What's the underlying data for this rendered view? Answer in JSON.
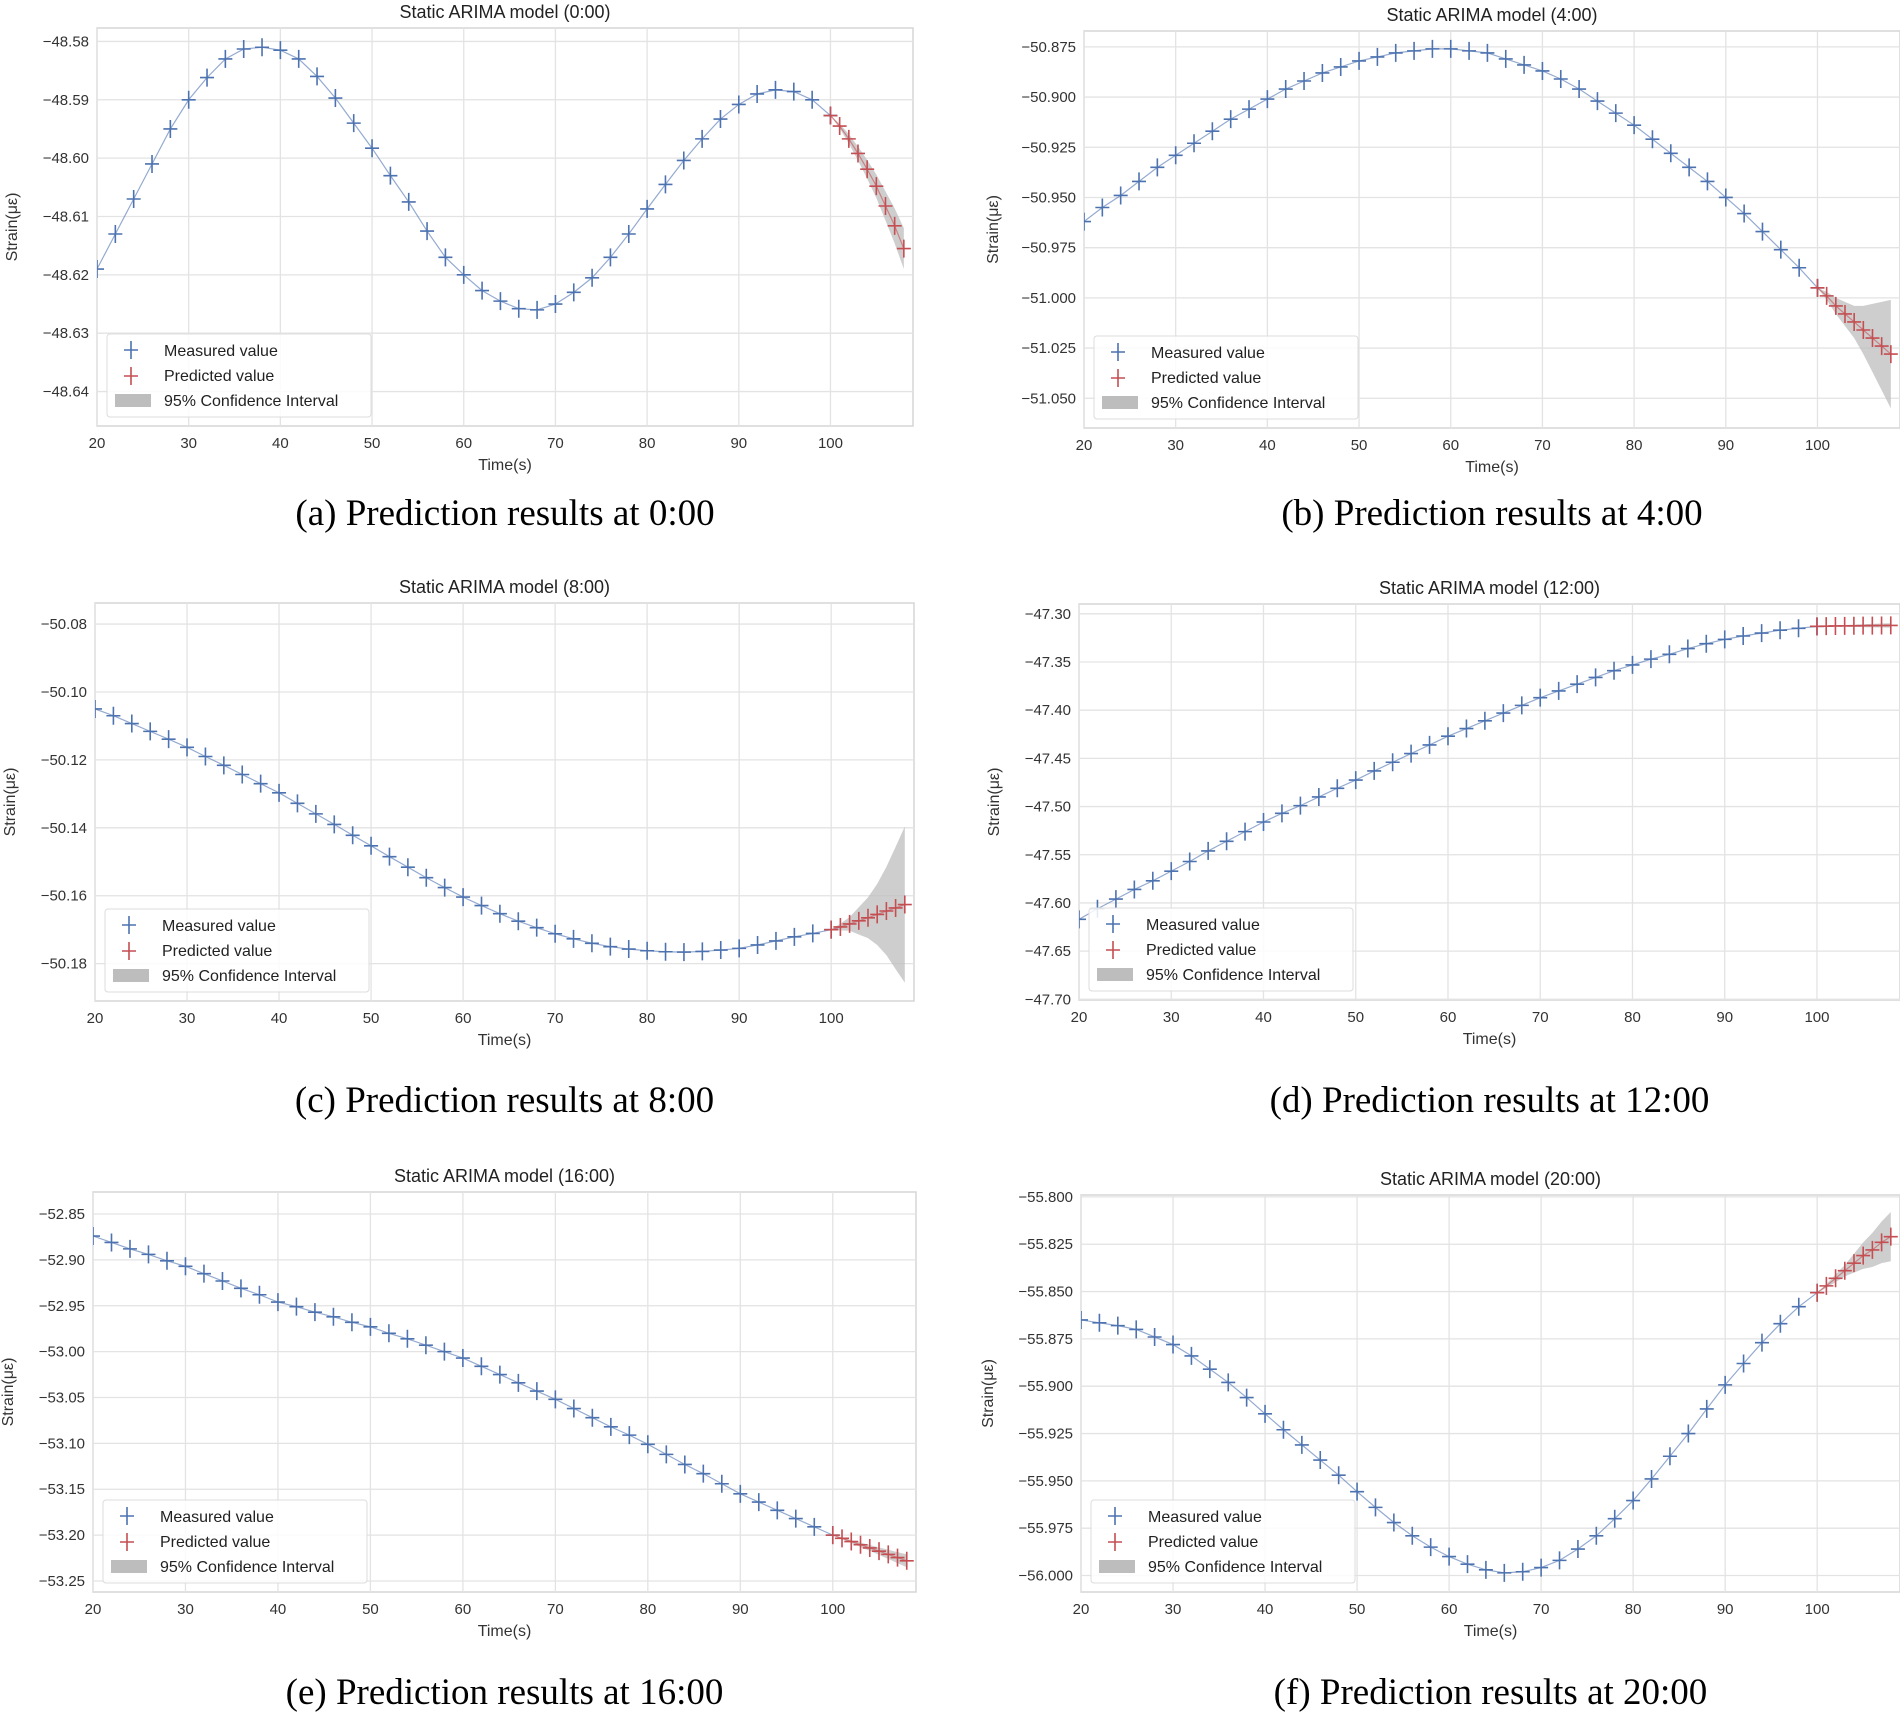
{
  "legend": {
    "measured": "Measured value",
    "predicted": "Predicted value",
    "ci": "95% Confidence Interval"
  },
  "colors": {
    "measured": "#4c72b0",
    "predicted": "#c44e52",
    "ci": "#bdbdbd",
    "grid": "#e3e3e3"
  },
  "chart_data": [
    {
      "type": "line",
      "title": "Static ARIMA model (0:00)",
      "caption": "(a) Prediction results at 0:00",
      "xlabel": "Time(s)",
      "ylabel": "Strain(με)",
      "grid": true,
      "legend_position": "lower-left",
      "xlim": [
        20,
        109
      ],
      "ylim": [
        -48.6459,
        -48.5777
      ],
      "xticks": [
        "20",
        "30",
        "40",
        "50",
        "60",
        "70",
        "80",
        "90",
        "100"
      ],
      "yticks": [
        "-48.58",
        "-48.59",
        "-48.60",
        "-48.61",
        "-48.62",
        "-48.63",
        "-48.64"
      ],
      "measured_x": [
        20,
        22,
        24,
        26,
        28,
        30,
        32,
        34,
        36,
        38,
        40,
        42,
        44,
        46,
        48,
        50,
        52,
        54,
        56,
        58,
        60,
        62,
        64,
        66,
        68,
        70,
        72,
        74,
        76,
        78,
        80,
        82,
        84,
        86,
        88,
        90,
        92,
        94,
        96,
        98,
        100
      ],
      "measured": [
        -48.619,
        -48.613,
        -48.607,
        -48.601,
        -48.595,
        -48.59,
        -48.5862,
        -48.583,
        -48.5813,
        -48.581,
        -48.5815,
        -48.583,
        -48.586,
        -48.5897,
        -48.594,
        -48.5983,
        -48.603,
        -48.6075,
        -48.6125,
        -48.617,
        -48.62,
        -48.6227,
        -48.6245,
        -48.6258,
        -48.626,
        -48.625,
        -48.623,
        -48.6205,
        -48.617,
        -48.613,
        -48.6087,
        -48.6045,
        -48.6004,
        -48.5967,
        -48.5933,
        -48.5908,
        -48.589,
        -48.5883,
        -48.5886,
        -48.59,
        -48.5927
      ],
      "predicted_x": [
        100,
        101,
        102,
        103,
        104,
        105,
        106,
        107,
        108
      ],
      "predicted": [
        -48.5927,
        -48.5945,
        -48.5967,
        -48.5992,
        -48.6019,
        -48.6048,
        -48.6082,
        -48.6116,
        -48.6155
      ],
      "ci_upper": [
        -48.5927,
        -48.5941,
        -48.5959,
        -48.598,
        -48.6003,
        -48.6028,
        -48.6057,
        -48.6086,
        -48.612
      ],
      "ci_lower": [
        -48.5927,
        -48.5949,
        -48.5975,
        -48.6004,
        -48.6035,
        -48.6068,
        -48.6107,
        -48.6146,
        -48.619
      ]
    },
    {
      "type": "line",
      "title": "Static ARIMA model (4:00)",
      "caption": "(b) Prediction results at 4:00",
      "xlabel": "Time(s)",
      "ylabel": "Strain(με)",
      "grid": true,
      "legend_position": "lower-left",
      "xlim": [
        20,
        109
      ],
      "ylim": [
        -51.0648,
        -50.8671
      ],
      "xticks": [
        "20",
        "30",
        "40",
        "50",
        "60",
        "70",
        "80",
        "90",
        "100"
      ],
      "yticks": [
        "-50.875",
        "-50.900",
        "-50.925",
        "-50.950",
        "-50.975",
        "-51.000",
        "-51.025",
        "-51.050"
      ],
      "measured_x": [
        20,
        22,
        24,
        26,
        28,
        30,
        32,
        34,
        36,
        38,
        40,
        42,
        44,
        46,
        48,
        50,
        52,
        54,
        56,
        58,
        60,
        62,
        64,
        66,
        68,
        70,
        72,
        74,
        76,
        78,
        80,
        82,
        84,
        86,
        88,
        90,
        92,
        94,
        96,
        98,
        100
      ],
      "measured": [
        -50.962,
        -50.955,
        -50.949,
        -50.942,
        -50.935,
        -50.929,
        -50.923,
        -50.917,
        -50.911,
        -50.906,
        -50.901,
        -50.896,
        -50.892,
        -50.888,
        -50.885,
        -50.882,
        -50.88,
        -50.878,
        -50.877,
        -50.876,
        -50.876,
        -50.877,
        -50.878,
        -50.881,
        -50.884,
        -50.887,
        -50.891,
        -50.896,
        -50.902,
        -50.908,
        -50.914,
        -50.921,
        -50.928,
        -50.935,
        -50.942,
        -50.95,
        -50.958,
        -50.967,
        -50.976,
        -50.985,
        -50.995
      ],
      "predicted_x": [
        100,
        101,
        102,
        103,
        104,
        105,
        106,
        107,
        108
      ],
      "predicted": [
        -50.995,
        -50.999,
        -51.004,
        -51.008,
        -51.012,
        -51.016,
        -51.02,
        -51.024,
        -51.028
      ],
      "ci_upper": [
        -50.995,
        -50.997,
        -51.0,
        -51.002,
        -51.004,
        -51.004,
        -51.003,
        -51.002,
        -51.001
      ],
      "ci_lower": [
        -50.995,
        -51.001,
        -51.008,
        -51.014,
        -51.02,
        -51.028,
        -51.037,
        -51.046,
        -51.055
      ]
    },
    {
      "type": "line",
      "title": "Static ARIMA model (8:00)",
      "caption": "(c) Prediction results at 8:00",
      "xlabel": "Time(s)",
      "ylabel": "Strain(με)",
      "grid": true,
      "legend_position": "lower-left",
      "xlim": [
        20,
        109
      ],
      "ylim": [
        -50.191,
        -50.0738
      ],
      "xticks": [
        "20",
        "30",
        "40",
        "50",
        "60",
        "70",
        "80",
        "90",
        "100"
      ],
      "yticks": [
        "-50.08",
        "-50.10",
        "-50.12",
        "-50.14",
        "-50.16",
        "-50.18"
      ],
      "measured_x": [
        20,
        22,
        24,
        26,
        28,
        30,
        32,
        34,
        36,
        38,
        40,
        42,
        44,
        46,
        48,
        50,
        52,
        54,
        56,
        58,
        60,
        62,
        64,
        66,
        68,
        70,
        72,
        74,
        76,
        78,
        80,
        82,
        84,
        86,
        88,
        90,
        92,
        94,
        96,
        98,
        100
      ],
      "measured": [
        -50.105,
        -50.107,
        -50.1093,
        -50.1116,
        -50.1139,
        -50.1163,
        -50.119,
        -50.1216,
        -50.1243,
        -50.127,
        -50.1297,
        -50.1328,
        -50.1359,
        -50.139,
        -50.1422,
        -50.1453,
        -50.1485,
        -50.1516,
        -50.1547,
        -50.1576,
        -50.1604,
        -50.1629,
        -50.1653,
        -50.1675,
        -50.1694,
        -50.1712,
        -50.1727,
        -50.174,
        -50.175,
        -50.1757,
        -50.1762,
        -50.1765,
        -50.1766,
        -50.1764,
        -50.176,
        -50.1755,
        -50.1745,
        -50.1733,
        -50.1721,
        -50.1711,
        -50.17
      ],
      "predicted_x": [
        100,
        101,
        102,
        103,
        104,
        105,
        106,
        107,
        108
      ],
      "predicted": [
        -50.17,
        -50.1692,
        -50.1683,
        -50.1674,
        -50.1665,
        -50.1655,
        -50.1645,
        -50.1636,
        -50.1626
      ],
      "ci_upper": [
        -50.17,
        -50.1682,
        -50.1663,
        -50.1634,
        -50.1605,
        -50.1565,
        -50.1515,
        -50.1456,
        -50.1396
      ],
      "ci_lower": [
        -50.17,
        -50.1702,
        -50.1703,
        -50.1714,
        -50.1725,
        -50.1745,
        -50.1775,
        -50.1816,
        -50.1856
      ]
    },
    {
      "type": "line",
      "title": "Static ARIMA model (12:00)",
      "caption": "(d) Prediction results at 12:00",
      "xlabel": "Time(s)",
      "ylabel": "Strain(με)",
      "grid": true,
      "legend_position": "lower-left",
      "xlim": [
        20,
        109
      ],
      "ylim": [
        -47.7007,
        -47.2898
      ],
      "xticks": [
        "20",
        "30",
        "40",
        "50",
        "60",
        "70",
        "80",
        "90",
        "100"
      ],
      "yticks": [
        "-47.30",
        "-47.35",
        "-47.40",
        "-47.45",
        "-47.50",
        "-47.55",
        "-47.60",
        "-47.65",
        "-47.70"
      ],
      "measured_x": [
        20,
        22,
        24,
        26,
        28,
        30,
        32,
        34,
        36,
        38,
        40,
        42,
        44,
        46,
        48,
        50,
        52,
        54,
        56,
        58,
        60,
        62,
        64,
        66,
        68,
        70,
        72,
        74,
        76,
        78,
        80,
        82,
        84,
        86,
        88,
        90,
        92,
        94,
        96,
        98,
        100
      ],
      "measured": [
        -47.617,
        -47.606,
        -47.596,
        -47.586,
        -47.577,
        -47.567,
        -47.557,
        -47.546,
        -47.536,
        -47.526,
        -47.516,
        -47.507,
        -47.499,
        -47.49,
        -47.481,
        -47.4725,
        -47.463,
        -47.454,
        -47.445,
        -47.436,
        -47.427,
        -47.419,
        -47.411,
        -47.403,
        -47.395,
        -47.387,
        -47.38,
        -47.373,
        -47.366,
        -47.359,
        -47.353,
        -47.347,
        -47.342,
        -47.336,
        -47.331,
        -47.3265,
        -47.323,
        -47.32,
        -47.317,
        -47.315,
        -47.313
      ],
      "predicted_x": [
        100,
        101,
        102,
        103,
        104,
        105,
        106,
        107,
        108
      ],
      "predicted": [
        -47.313,
        -47.3128,
        -47.3126,
        -47.3125,
        -47.3124,
        -47.3123,
        -47.3122,
        -47.3121,
        -47.312
      ],
      "ci_upper": [
        -47.313,
        -47.3125,
        -47.312,
        -47.3116,
        -47.3112,
        -47.3108,
        -47.3104,
        -47.31,
        -47.3096
      ],
      "ci_lower": [
        -47.313,
        -47.3131,
        -47.3132,
        -47.3134,
        -47.3136,
        -47.3138,
        -47.314,
        -47.3142,
        -47.3144
      ]
    },
    {
      "type": "line",
      "title": "Static ARIMA model (16:00)",
      "caption": "(e) Prediction results at 16:00",
      "xlabel": "Time(s)",
      "ylabel": "Strain(με)",
      "grid": true,
      "legend_position": "lower-left",
      "xlim": [
        20,
        109
      ],
      "ylim": [
        -53.262,
        -52.826
      ],
      "xticks": [
        "20",
        "30",
        "40",
        "50",
        "60",
        "70",
        "80",
        "90",
        "100"
      ],
      "yticks": [
        "-52.85",
        "-52.90",
        "-52.95",
        "-53.00",
        "-53.05",
        "-53.10",
        "-53.15",
        "-53.20",
        "-53.25"
      ],
      "measured_x": [
        20,
        22,
        24,
        26,
        28,
        30,
        32,
        34,
        36,
        38,
        40,
        42,
        44,
        46,
        48,
        50,
        52,
        54,
        56,
        58,
        60,
        62,
        64,
        66,
        68,
        70,
        72,
        74,
        76,
        78,
        80,
        82,
        84,
        86,
        88,
        90,
        92,
        94,
        96,
        98,
        100
      ],
      "measured": [
        -52.874,
        -52.881,
        -52.888,
        -52.894,
        -52.901,
        -52.907,
        -52.915,
        -52.923,
        -52.931,
        -52.938,
        -52.946,
        -52.951,
        -52.957,
        -52.962,
        -52.968,
        -52.973,
        -52.98,
        -52.986,
        -52.993,
        -53.0,
        -53.007,
        -53.016,
        -53.025,
        -53.034,
        -53.043,
        -53.052,
        -53.062,
        -53.072,
        -53.082,
        -53.091,
        -53.101,
        -53.112,
        -53.123,
        -53.133,
        -53.144,
        -53.155,
        -53.164,
        -53.173,
        -53.182,
        -53.191,
        -53.2
      ],
      "predicted_x": [
        100,
        101,
        102,
        103,
        104,
        105,
        106,
        107,
        108
      ],
      "predicted": [
        -53.2,
        -53.2035,
        -53.207,
        -53.2105,
        -53.214,
        -53.2175,
        -53.221,
        -53.2245,
        -53.228
      ],
      "ci_upper": [
        -53.2,
        -53.2027,
        -53.2054,
        -53.2081,
        -53.2108,
        -53.2135,
        -53.216,
        -53.2185,
        -53.221
      ],
      "ci_lower": [
        -53.2,
        -53.2043,
        -53.2086,
        -53.2129,
        -53.2172,
        -53.2215,
        -53.226,
        -53.2305,
        -53.235
      ]
    },
    {
      "type": "line",
      "title": "Static ARIMA model (20:00)",
      "caption": "(f) Prediction results at 20:00",
      "xlabel": "Time(s)",
      "ylabel": "Strain(με)",
      "grid": true,
      "legend_position": "lower-left",
      "xlim": [
        20,
        109
      ],
      "ylim": [
        -56.0087,
        -55.799
      ],
      "xticks": [
        "20",
        "30",
        "40",
        "50",
        "60",
        "70",
        "80",
        "90",
        "100"
      ],
      "yticks": [
        "-55.800",
        "-55.825",
        "-55.850",
        "-55.875",
        "-55.900",
        "-55.925",
        "-55.950",
        "-55.975",
        "-56.000"
      ],
      "measured_x": [
        20,
        22,
        24,
        26,
        28,
        30,
        32,
        34,
        36,
        38,
        40,
        42,
        44,
        46,
        48,
        50,
        52,
        54,
        56,
        58,
        60,
        62,
        64,
        66,
        68,
        70,
        72,
        74,
        76,
        78,
        80,
        82,
        84,
        86,
        88,
        90,
        92,
        94,
        96,
        98,
        100
      ],
      "measured": [
        -55.865,
        -55.8665,
        -55.868,
        -55.87,
        -55.874,
        -55.878,
        -55.884,
        -55.891,
        -55.898,
        -55.906,
        -55.9146,
        -55.923,
        -55.931,
        -55.939,
        -55.947,
        -55.9557,
        -55.964,
        -55.972,
        -55.979,
        -55.985,
        -55.99,
        -55.994,
        -55.997,
        -55.9986,
        -55.998,
        -55.9958,
        -55.992,
        -55.986,
        -55.979,
        -55.97,
        -55.9604,
        -55.949,
        -55.937,
        -55.925,
        -55.912,
        -55.8993,
        -55.888,
        -55.877,
        -55.867,
        -55.858,
        -55.8506
      ],
      "predicted_x": [
        100,
        101,
        102,
        103,
        104,
        105,
        106,
        107,
        108
      ],
      "predicted": [
        -55.8506,
        -55.847,
        -55.843,
        -55.839,
        -55.835,
        -55.831,
        -55.828,
        -55.824,
        -55.821
      ],
      "ci_upper": [
        -55.8506,
        -55.846,
        -55.841,
        -55.836,
        -55.83,
        -55.824,
        -55.819,
        -55.813,
        -55.808
      ],
      "ci_lower": [
        -55.8506,
        -55.848,
        -55.845,
        -55.842,
        -55.84,
        -55.838,
        -55.837,
        -55.835,
        -55.834
      ]
    }
  ]
}
